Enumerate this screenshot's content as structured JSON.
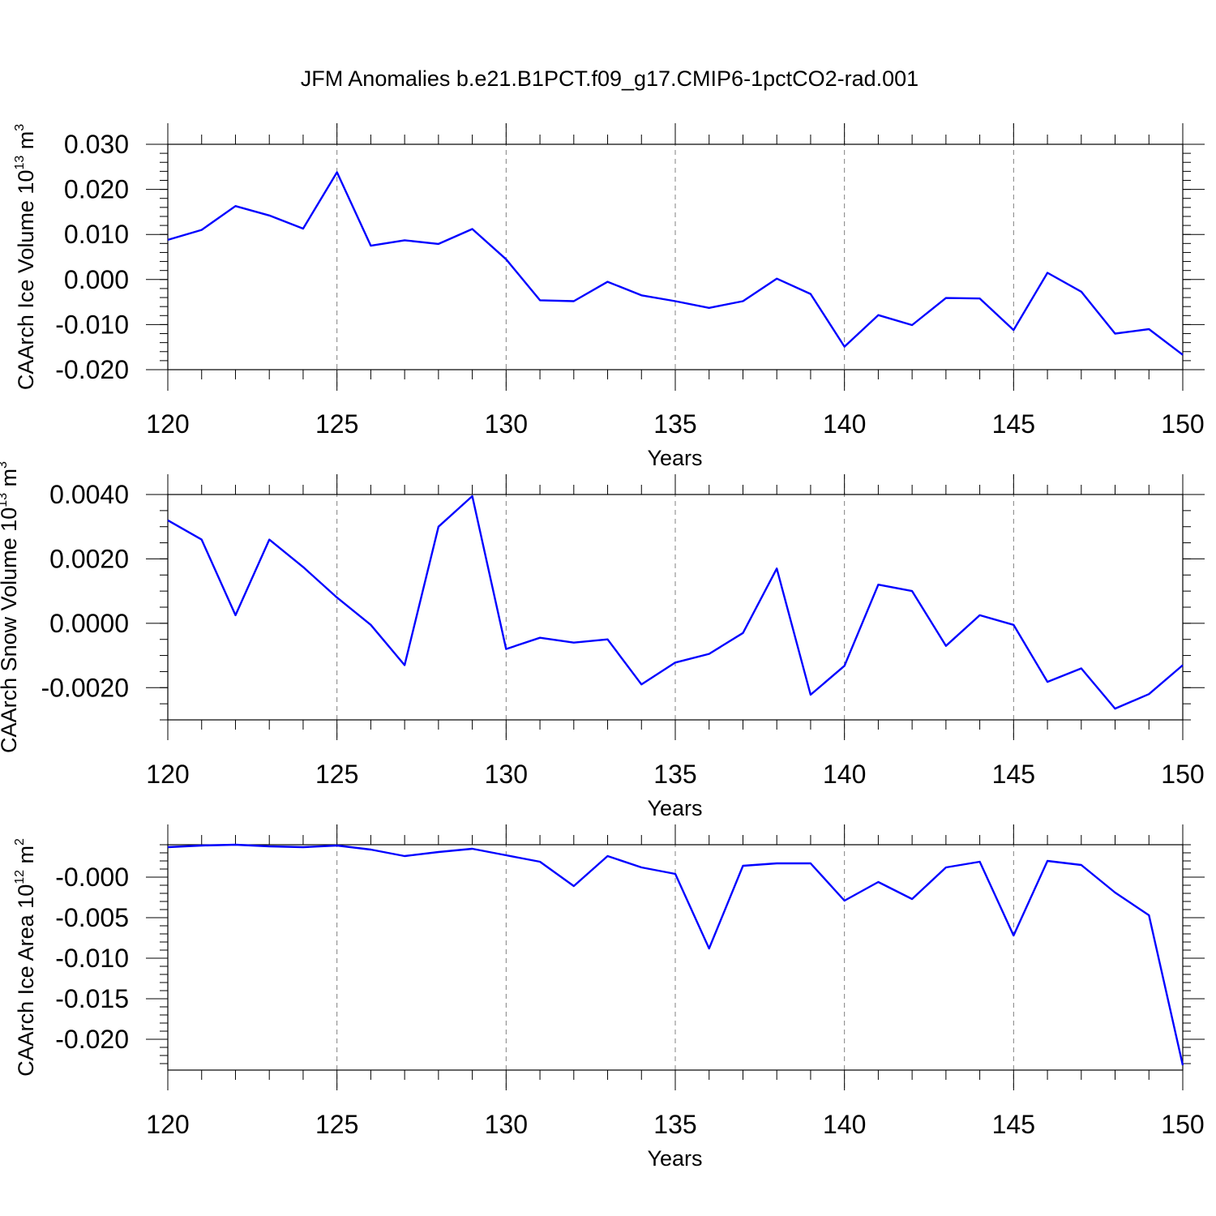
{
  "title": "JFM Anomalies b.e21.B1PCT.f09_g17.CMIP6-1pctCO2-rad.001",
  "line_color": "#0000ff",
  "chart_data": [
    {
      "type": "line",
      "xlabel": "Years",
      "ylabel": "CAArch Ice Volume 10",
      "ylabel_exponent": "13",
      "ylabel_unit": " m",
      "ylabel_unit_exponent": "3",
      "xlim": [
        120,
        150
      ],
      "ylim": [
        -0.02,
        0.03
      ],
      "grid": "dashed vertical at major x ticks",
      "x_ticks": [
        120,
        125,
        130,
        135,
        140,
        145,
        150
      ],
      "x_tick_labels": [
        "120",
        "125",
        "130",
        "135",
        "140",
        "145",
        "150"
      ],
      "y_ticks": [
        0.03,
        0.02,
        0.01,
        0.0,
        -0.01,
        -0.02
      ],
      "y_tick_labels": [
        "0.030",
        "0.020",
        "0.010",
        "0.000",
        "-0.010",
        "-0.020"
      ],
      "x": [
        120,
        121,
        122,
        123,
        124,
        125,
        126,
        127,
        128,
        129,
        130,
        131,
        132,
        133,
        134,
        135,
        136,
        137,
        138,
        139,
        140,
        141,
        142,
        143,
        144,
        145,
        146,
        147,
        148,
        149,
        150
      ],
      "values": [
        0.0088,
        0.011,
        0.0163,
        0.0142,
        0.0113,
        0.0238,
        0.0075,
        0.0087,
        0.0079,
        0.0112,
        0.0045,
        -0.0046,
        -0.0048,
        -0.0005,
        -0.0035,
        -0.0048,
        -0.0063,
        -0.0048,
        0.0002,
        -0.0032,
        -0.0149,
        -0.0079,
        -0.0101,
        -0.0041,
        -0.0042,
        -0.0112,
        0.0015,
        -0.0027,
        -0.012,
        -0.011,
        -0.0167
      ]
    },
    {
      "type": "line",
      "xlabel": "Years",
      "ylabel": "CAArch Snow Volume 10",
      "ylabel_exponent": "13",
      "ylabel_unit": " m",
      "ylabel_unit_exponent": "3",
      "xlim": [
        120,
        150
      ],
      "ylim": [
        -0.003,
        0.004
      ],
      "grid": "dashed vertical at major x ticks",
      "x_ticks": [
        120,
        125,
        130,
        135,
        140,
        145,
        150
      ],
      "x_tick_labels": [
        "120",
        "125",
        "130",
        "135",
        "140",
        "145",
        "150"
      ],
      "y_ticks": [
        0.004,
        0.002,
        0.0,
        -0.002
      ],
      "y_tick_labels": [
        "0.0040",
        "0.0020",
        "0.0000",
        "-0.0020"
      ],
      "x": [
        120,
        121,
        122,
        123,
        124,
        125,
        126,
        127,
        128,
        129,
        130,
        131,
        132,
        133,
        134,
        135,
        136,
        137,
        138,
        139,
        140,
        141,
        142,
        143,
        144,
        145,
        146,
        147,
        148,
        149,
        150
      ],
      "values": [
        0.0032,
        0.0026,
        0.00025,
        0.0026,
        0.00175,
        0.0008,
        -5e-05,
        -0.0013,
        0.003,
        0.00395,
        -0.0008,
        -0.00045,
        -0.0006,
        -0.0005,
        -0.0019,
        -0.00122,
        -0.00095,
        -0.0003,
        0.0017,
        -0.00222,
        -0.00132,
        0.0012,
        0.001,
        -0.0007,
        0.00025,
        -5e-05,
        -0.00182,
        -0.0014,
        -0.00265,
        -0.0022,
        -0.0013
      ]
    },
    {
      "type": "line",
      "xlabel": "Years",
      "ylabel": "CAArch Ice Area 10",
      "ylabel_exponent": "12",
      "ylabel_unit": " m",
      "ylabel_unit_exponent": "2",
      "xlim": [
        120,
        150
      ],
      "ylim": [
        -0.0238,
        0.004
      ],
      "grid": "dashed vertical at major x ticks",
      "x_ticks": [
        120,
        125,
        130,
        135,
        140,
        145,
        150
      ],
      "x_tick_labels": [
        "120",
        "125",
        "130",
        "135",
        "140",
        "145",
        "150"
      ],
      "y_ticks": [
        0.0,
        -0.005,
        -0.01,
        -0.015,
        -0.02
      ],
      "y_tick_labels": [
        "-0.000",
        "-0.005",
        "-0.010",
        "-0.015",
        "-0.020"
      ],
      "x": [
        120,
        121,
        122,
        123,
        124,
        125,
        126,
        127,
        128,
        129,
        130,
        131,
        132,
        133,
        134,
        135,
        136,
        137,
        138,
        139,
        140,
        141,
        142,
        143,
        144,
        145,
        146,
        147,
        148,
        149,
        150
      ],
      "values": [
        0.0037,
        0.0039,
        0.004,
        0.0038,
        0.0037,
        0.0039,
        0.0034,
        0.0026,
        0.0031,
        0.0035,
        0.0027,
        0.0019,
        -0.0011,
        0.0026,
        0.0012,
        0.0004,
        -0.0088,
        0.0014,
        0.0017,
        0.0017,
        -0.0029,
        -0.0006,
        -0.0027,
        0.0012,
        0.0019,
        -0.0072,
        0.002,
        0.0015,
        -0.0019,
        -0.0047,
        -0.0232
      ]
    }
  ]
}
